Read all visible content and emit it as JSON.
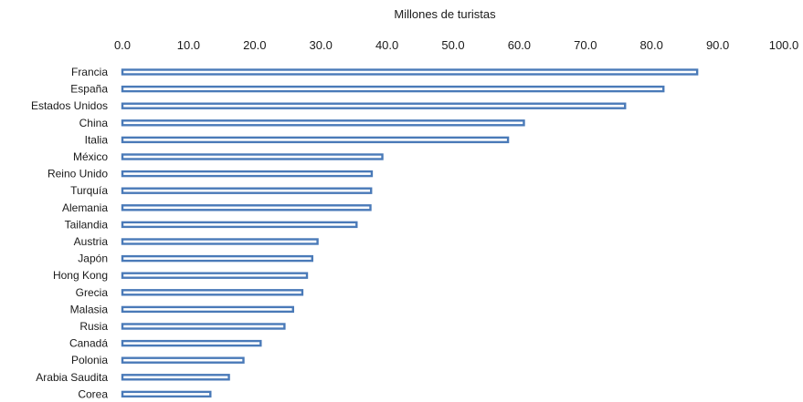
{
  "chart_data": {
    "type": "bar",
    "orientation": "horizontal",
    "title": "",
    "xlabel": "Millones de turistas",
    "ylabel": "",
    "xaxis_position": "top",
    "xlim": [
      0,
      100
    ],
    "xticks": [
      "0.0",
      "10.0",
      "20.0",
      "30.0",
      "40.0",
      "50.0",
      "60.0",
      "70.0",
      "80.0",
      "90.0",
      "100.0"
    ],
    "grid": false,
    "legend": "none",
    "bar_style": "outline",
    "bar_color": "#4a7ab8",
    "categories": [
      "Francia",
      "España",
      "Estados Unidos",
      "China",
      "Italia",
      "México",
      "Reino Unido",
      "Turquía",
      "Alemania",
      "Tailandia",
      "Austria",
      "Japón",
      "Hong Kong",
      "Grecia",
      "Malasia",
      "Rusia",
      "Canadá",
      "Polonia",
      "Arabia Saudita",
      "Corea"
    ],
    "values": [
      86.9,
      81.8,
      76.0,
      60.7,
      58.3,
      39.3,
      37.7,
      37.6,
      37.5,
      35.4,
      29.5,
      28.7,
      27.9,
      27.2,
      25.8,
      24.5,
      20.9,
      18.3,
      16.1,
      13.3
    ]
  }
}
